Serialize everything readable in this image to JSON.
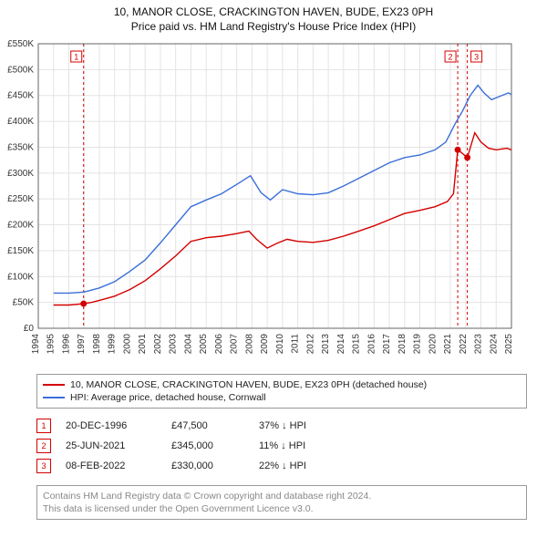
{
  "title_line1": "10, MANOR CLOSE, CRACKINGTON HAVEN, BUDE, EX23 0PH",
  "title_line2": "Price paid vs. HM Land Registry's House Price Index (HPI)",
  "chart": {
    "type": "line",
    "background_color": "#ffffff",
    "grid_color": "#e4e4e4",
    "axis_color": "#666666",
    "tick_label_color": "#333333",
    "tick_fontsize": 10,
    "x": {
      "min": 1994,
      "max": 2025,
      "ticks": [
        1994,
        1995,
        1996,
        1997,
        1998,
        1999,
        2000,
        2001,
        2002,
        2003,
        2004,
        2005,
        2006,
        2007,
        2008,
        2009,
        2010,
        2011,
        2012,
        2013,
        2014,
        2015,
        2016,
        2017,
        2018,
        2019,
        2020,
        2021,
        2022,
        2023,
        2024,
        2025
      ]
    },
    "y": {
      "min": 0,
      "max": 550000,
      "tick_step": 50000,
      "tick_labels": [
        "£0",
        "£50K",
        "£100K",
        "£150K",
        "£200K",
        "£250K",
        "£300K",
        "£350K",
        "£400K",
        "£450K",
        "£500K",
        "£550K"
      ]
    },
    "series": [
      {
        "id": "property",
        "label": "10, MANOR CLOSE, CRACKINGTON HAVEN, BUDE, EX23 0PH (detached house)",
        "color": "#d40000",
        "line_width": 1.4,
        "points": [
          [
            1995.0,
            45000
          ],
          [
            1996.0,
            45000
          ],
          [
            1996.97,
            47500
          ],
          [
            1997.5,
            50000
          ],
          [
            1998.0,
            54000
          ],
          [
            1999.0,
            62000
          ],
          [
            2000.0,
            75000
          ],
          [
            2001.0,
            92000
          ],
          [
            2002.0,
            115000
          ],
          [
            2003.0,
            140000
          ],
          [
            2004.0,
            168000
          ],
          [
            2005.0,
            175000
          ],
          [
            2006.0,
            178000
          ],
          [
            2007.0,
            183000
          ],
          [
            2007.8,
            188000
          ],
          [
            2008.3,
            172000
          ],
          [
            2009.0,
            155000
          ],
          [
            2009.7,
            165000
          ],
          [
            2010.3,
            172000
          ],
          [
            2011.0,
            168000
          ],
          [
            2012.0,
            166000
          ],
          [
            2013.0,
            170000
          ],
          [
            2014.0,
            178000
          ],
          [
            2015.0,
            188000
          ],
          [
            2016.0,
            198000
          ],
          [
            2017.0,
            210000
          ],
          [
            2018.0,
            222000
          ],
          [
            2019.0,
            228000
          ],
          [
            2020.0,
            235000
          ],
          [
            2020.8,
            245000
          ],
          [
            2021.2,
            260000
          ],
          [
            2021.48,
            345000
          ],
          [
            2021.7,
            340000
          ],
          [
            2022.11,
            330000
          ],
          [
            2022.6,
            378000
          ],
          [
            2023.0,
            360000
          ],
          [
            2023.5,
            348000
          ],
          [
            2024.0,
            345000
          ],
          [
            2024.7,
            348000
          ],
          [
            2025.0,
            345000
          ]
        ]
      },
      {
        "id": "hpi",
        "label": "HPI: Average price, detached house, Cornwall",
        "color": "#3a6fd8",
        "line_width": 1.4,
        "points": [
          [
            1995.0,
            68000
          ],
          [
            1996.0,
            68000
          ],
          [
            1997.0,
            70000
          ],
          [
            1998.0,
            78000
          ],
          [
            1999.0,
            90000
          ],
          [
            2000.0,
            110000
          ],
          [
            2001.0,
            132000
          ],
          [
            2002.0,
            165000
          ],
          [
            2003.0,
            200000
          ],
          [
            2004.0,
            235000
          ],
          [
            2005.0,
            248000
          ],
          [
            2006.0,
            260000
          ],
          [
            2007.0,
            278000
          ],
          [
            2007.9,
            295000
          ],
          [
            2008.6,
            262000
          ],
          [
            2009.2,
            248000
          ],
          [
            2010.0,
            268000
          ],
          [
            2011.0,
            260000
          ],
          [
            2012.0,
            258000
          ],
          [
            2013.0,
            262000
          ],
          [
            2014.0,
            275000
          ],
          [
            2015.0,
            290000
          ],
          [
            2016.0,
            305000
          ],
          [
            2017.0,
            320000
          ],
          [
            2018.0,
            330000
          ],
          [
            2019.0,
            335000
          ],
          [
            2020.0,
            345000
          ],
          [
            2020.7,
            360000
          ],
          [
            2021.3,
            395000
          ],
          [
            2021.8,
            420000
          ],
          [
            2022.3,
            450000
          ],
          [
            2022.8,
            470000
          ],
          [
            2023.2,
            455000
          ],
          [
            2023.7,
            442000
          ],
          [
            2024.2,
            448000
          ],
          [
            2024.8,
            455000
          ],
          [
            2025.0,
            452000
          ]
        ]
      }
    ],
    "vlines": [
      {
        "x": 1996.97,
        "color": "#d40000",
        "dash": "3,3",
        "marker": "1",
        "marker_side": "left"
      },
      {
        "x": 2021.48,
        "color": "#d40000",
        "dash": "3,3",
        "marker": "2",
        "marker_side": "left"
      },
      {
        "x": 2022.11,
        "color": "#d40000",
        "dash": "3,3",
        "marker": "3",
        "marker_side": "right"
      }
    ],
    "sale_markers": [
      {
        "x": 1996.97,
        "y": 47500,
        "color": "#d40000"
      },
      {
        "x": 2021.48,
        "y": 345000,
        "color": "#d40000"
      },
      {
        "x": 2022.11,
        "y": 330000,
        "color": "#d40000"
      }
    ]
  },
  "legend": [
    {
      "label": "10, MANOR CLOSE, CRACKINGTON HAVEN, BUDE, EX23 0PH (detached house)",
      "color": "#d40000"
    },
    {
      "label": "HPI: Average price, detached house, Cornwall",
      "color": "#3a6fd8"
    }
  ],
  "transactions": [
    {
      "n": "1",
      "date": "20-DEC-1996",
      "price": "£47,500",
      "delta": "37% ↓ HPI",
      "color": "#d40000"
    },
    {
      "n": "2",
      "date": "25-JUN-2021",
      "price": "£345,000",
      "delta": "11% ↓ HPI",
      "color": "#d40000"
    },
    {
      "n": "3",
      "date": "08-FEB-2022",
      "price": "£330,000",
      "delta": "22% ↓ HPI",
      "color": "#d40000"
    }
  ],
  "footer_line1": "Contains HM Land Registry data © Crown copyright and database right 2024.",
  "footer_line2": "This data is licensed under the Open Government Licence v3.0."
}
